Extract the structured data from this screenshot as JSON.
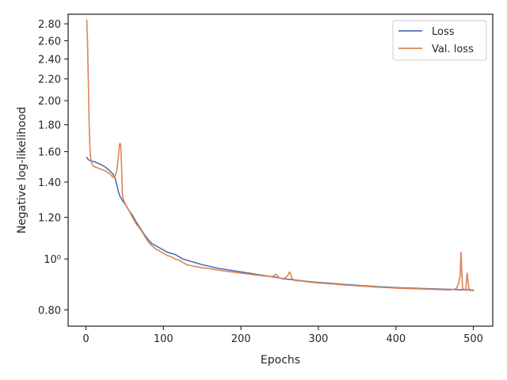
{
  "chart_data": {
    "type": "line",
    "xlabel": "Epochs",
    "ylabel": "Negative log-likelihood",
    "xlim": [
      -23,
      525
    ],
    "ylim": [
      0.745,
      2.92
    ],
    "yscale": "log",
    "xticks": [
      0,
      100,
      200,
      300,
      400,
      500
    ],
    "yticks": [
      {
        "value": 0.8,
        "label": "0.80"
      },
      {
        "value": 1.0,
        "label": "10⁰"
      },
      {
        "value": 1.2,
        "label": "1.20"
      },
      {
        "value": 1.4,
        "label": "1.40"
      },
      {
        "value": 1.6,
        "label": "1.60"
      },
      {
        "value": 1.8,
        "label": "1.80"
      },
      {
        "value": 2.0,
        "label": "2.00"
      },
      {
        "value": 2.2,
        "label": "2.20"
      },
      {
        "value": 2.4,
        "label": "2.40"
      },
      {
        "value": 2.6,
        "label": "2.60"
      },
      {
        "value": 2.8,
        "label": "2.80"
      }
    ],
    "grid": false,
    "legend": "top-right",
    "series": [
      {
        "name": "Loss",
        "color": "#4c72b0",
        "x": [
          1,
          3,
          5,
          8,
          12,
          16,
          20,
          25,
          30,
          35,
          38,
          40,
          42,
          44,
          46,
          48,
          50,
          55,
          60,
          65,
          70,
          75,
          80,
          85,
          90,
          95,
          100,
          105,
          110,
          115,
          120,
          125,
          130,
          135,
          140,
          145,
          150,
          160,
          170,
          180,
          190,
          200,
          210,
          220,
          230,
          240,
          250,
          260,
          270,
          280,
          290,
          300,
          310,
          320,
          330,
          340,
          350,
          360,
          370,
          380,
          390,
          400,
          410,
          420,
          430,
          440,
          450,
          460,
          470,
          480,
          490,
          500
        ],
        "y": [
          1.56,
          1.545,
          1.54,
          1.535,
          1.528,
          1.52,
          1.51,
          1.495,
          1.475,
          1.45,
          1.42,
          1.38,
          1.34,
          1.315,
          1.3,
          1.285,
          1.275,
          1.24,
          1.21,
          1.175,
          1.145,
          1.115,
          1.09,
          1.07,
          1.06,
          1.05,
          1.04,
          1.03,
          1.025,
          1.02,
          1.01,
          1.0,
          0.995,
          0.99,
          0.985,
          0.98,
          0.975,
          0.968,
          0.96,
          0.955,
          0.95,
          0.945,
          0.94,
          0.935,
          0.93,
          0.925,
          0.92,
          0.915,
          0.912,
          0.908,
          0.905,
          0.902,
          0.9,
          0.898,
          0.895,
          0.893,
          0.891,
          0.889,
          0.887,
          0.885,
          0.884,
          0.882,
          0.881,
          0.88,
          0.879,
          0.878,
          0.877,
          0.876,
          0.875,
          0.874,
          0.874,
          0.873
        ]
      },
      {
        "name": "Val. loss",
        "color": "#dd8452",
        "x": [
          1,
          2,
          3,
          4,
          5,
          6,
          7,
          8,
          9,
          10,
          15,
          20,
          25,
          30,
          35,
          38,
          40,
          42,
          43,
          44,
          45,
          46,
          47,
          48,
          50,
          55,
          60,
          65,
          70,
          75,
          80,
          85,
          90,
          95,
          100,
          105,
          110,
          115,
          120,
          125,
          130,
          140,
          150,
          160,
          170,
          180,
          190,
          200,
          210,
          220,
          230,
          240,
          245,
          250,
          255,
          260,
          263,
          266,
          270,
          280,
          290,
          300,
          310,
          320,
          330,
          340,
          350,
          360,
          370,
          380,
          390,
          400,
          410,
          420,
          430,
          440,
          450,
          460,
          470,
          478,
          481,
          483,
          484,
          485,
          486,
          488,
          490,
          492,
          494,
          496,
          498,
          500
        ],
        "y": [
          2.85,
          2.6,
          2.2,
          1.85,
          1.64,
          1.56,
          1.53,
          1.515,
          1.505,
          1.5,
          1.49,
          1.48,
          1.47,
          1.455,
          1.43,
          1.44,
          1.48,
          1.57,
          1.64,
          1.66,
          1.64,
          1.5,
          1.33,
          1.3,
          1.28,
          1.24,
          1.2,
          1.165,
          1.14,
          1.11,
          1.08,
          1.06,
          1.045,
          1.035,
          1.025,
          1.015,
          1.01,
          1.0,
          0.995,
          0.985,
          0.975,
          0.968,
          0.962,
          0.958,
          0.953,
          0.948,
          0.944,
          0.94,
          0.936,
          0.932,
          0.928,
          0.925,
          0.935,
          0.92,
          0.915,
          0.928,
          0.945,
          0.918,
          0.91,
          0.907,
          0.903,
          0.9,
          0.898,
          0.896,
          0.893,
          0.891,
          0.889,
          0.887,
          0.885,
          0.883,
          0.882,
          0.88,
          0.879,
          0.878,
          0.877,
          0.876,
          0.875,
          0.874,
          0.873,
          0.878,
          0.9,
          0.93,
          1.03,
          0.95,
          0.88,
          0.875,
          0.872,
          0.94,
          0.88,
          0.87,
          0.872,
          0.87
        ]
      }
    ]
  }
}
